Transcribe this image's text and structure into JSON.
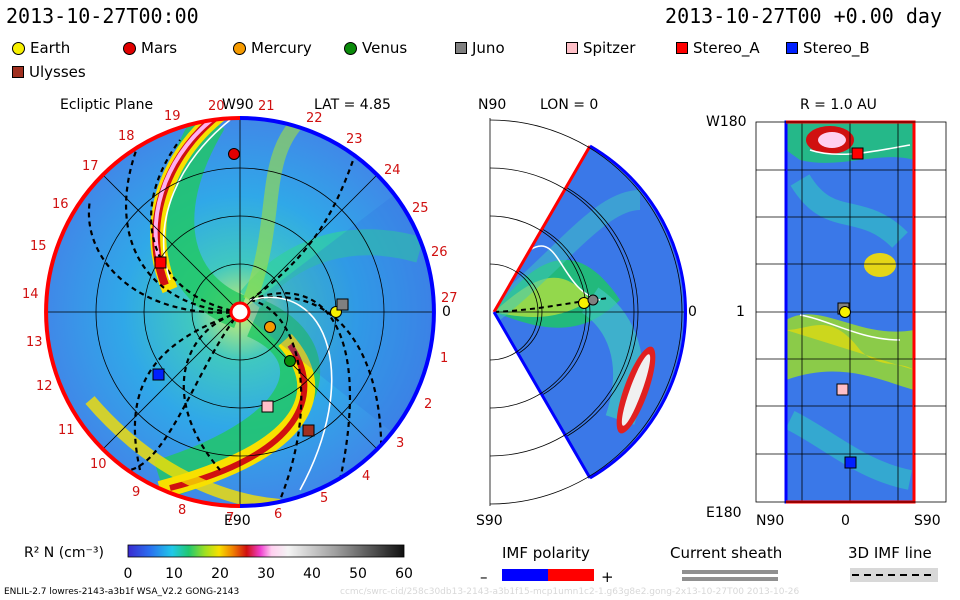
{
  "header": {
    "left_time": "2013-10-27T00:00",
    "right_time": "2013-10-27T00 +0.00 day"
  },
  "legend": [
    {
      "name": "Earth",
      "color": "#f7f000",
      "shape": "circle"
    },
    {
      "name": "Mars",
      "color": "#e00000",
      "shape": "circle"
    },
    {
      "name": "Mercury",
      "color": "#f59a00",
      "shape": "circle"
    },
    {
      "name": "Venus",
      "color": "#0a8a0a",
      "shape": "circle"
    },
    {
      "name": "Juno",
      "color": "#808080",
      "shape": "square"
    },
    {
      "name": "Spitzer",
      "color": "#ffc0c8",
      "shape": "square"
    },
    {
      "name": "Stereo_A",
      "color": "#ff0000",
      "shape": "square"
    },
    {
      "name": "Stereo_B",
      "color": "#0020ff",
      "shape": "square"
    },
    {
      "name": "Ulysses",
      "color": "#a03020",
      "shape": "square"
    }
  ],
  "ecliptic": {
    "title": "Ecliptic Plane",
    "top_label": "W90",
    "bottom_label": "E90",
    "right_label": "0",
    "lat_label": "LAT = 4.85",
    "carrington_numbers": [
      "19",
      "20",
      "21",
      "22",
      "23",
      "24",
      "25",
      "26",
      "27",
      "1",
      "2",
      "3",
      "4",
      "5",
      "6",
      "7",
      "8",
      "9",
      "10",
      "11",
      "12",
      "13",
      "14",
      "15",
      "16",
      "17",
      "18"
    ]
  },
  "meridional": {
    "top_label": "N90",
    "bottom_label": "S90",
    "lon_label": "LON = 0",
    "right_label": "0"
  },
  "rpanel": {
    "title": "R = 1.0 AU",
    "top_left": "W180",
    "bottom_left": "E180",
    "mid_left": "1",
    "x_left": "N90",
    "x_mid": "0",
    "x_right": "S90"
  },
  "colorbar": {
    "label": "R² N (cm⁻³)",
    "ticks": [
      "0",
      "10",
      "20",
      "30",
      "40",
      "50",
      "60"
    ],
    "range": [
      0,
      60
    ]
  },
  "imf": {
    "title": "IMF polarity",
    "minus": "–",
    "plus": "+"
  },
  "current_sheath": {
    "title": "Current sheath"
  },
  "imf_line": {
    "title": "3D IMF line"
  },
  "footer": {
    "left": "ENLIL-2.7 lowres-2143-a3b1f WSA_V2.2 GONG-2143",
    "right": "ccmc/swrc-cid/258c30db13-2143-a3b1f15-mcp1umn1c2-1.g63g8e2.gong-2x13-10-27T00   2013-10-26"
  },
  "colors": {
    "positive_polarity": "#ff0000",
    "negative_polarity": "#0000ff"
  }
}
